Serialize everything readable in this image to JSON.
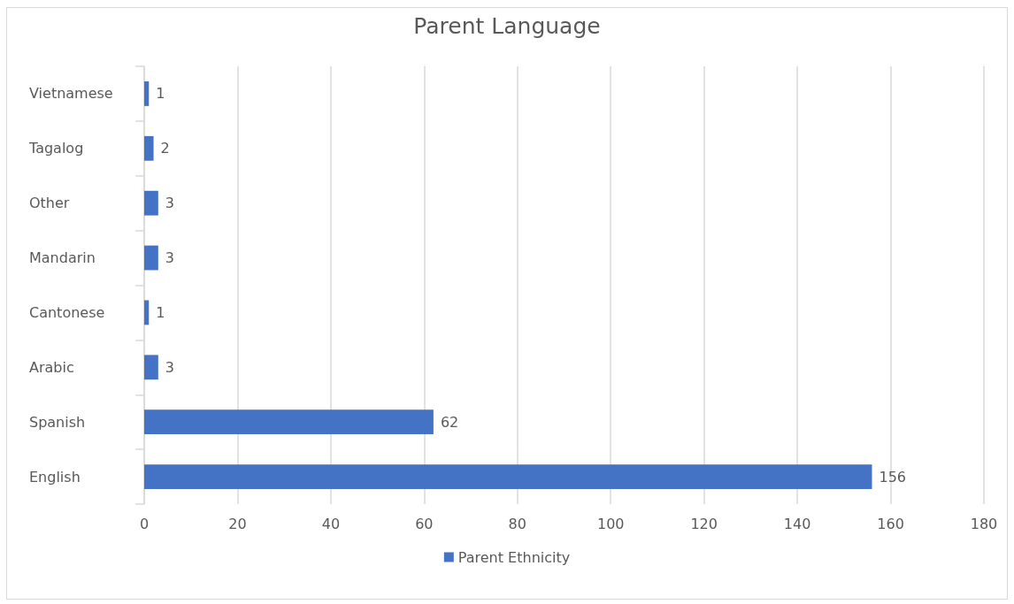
{
  "chart_data": {
    "type": "bar",
    "title": "Parent Language",
    "orientation": "horizontal",
    "categories": [
      "Vietnamese",
      "Tagalog",
      "Other",
      "Mandarin",
      "Cantonese",
      "Arabic",
      "Spanish",
      "English"
    ],
    "series": [
      {
        "name": "Parent Ethnicity",
        "color": "#4472c4",
        "values": [
          1,
          2,
          3,
          3,
          1,
          3,
          62,
          156
        ]
      }
    ],
    "xlim": [
      0,
      180
    ],
    "xticks": [
      0,
      20,
      40,
      60,
      80,
      100,
      120,
      140,
      160,
      180
    ],
    "grid": "x",
    "legend": "bottom",
    "data_labels": true
  }
}
